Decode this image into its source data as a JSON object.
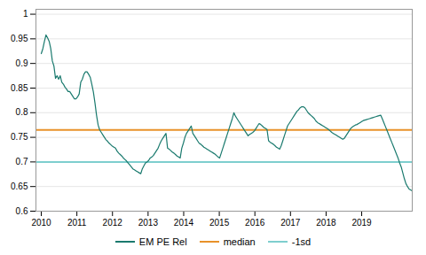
{
  "chart_data": {
    "type": "line",
    "x": [
      2010,
      2010.0443,
      2010.0887,
      2010.133,
      2010.1774,
      2010.2217,
      2010.266,
      2010.3104,
      2010.3547,
      2010.3991,
      2010.4434,
      2010.4877,
      2010.5321,
      2010.5764,
      2010.6208,
      2010.6651,
      2010.7094,
      2010.7538,
      2010.7981,
      2010.8425,
      2010.8868,
      2010.9311,
      2010.9755,
      2011.0198,
      2011.0642,
      2011.1085,
      2011.1529,
      2011.1972,
      2011.2415,
      2011.2859,
      2011.3302,
      2011.3746,
      2011.4189,
      2011.4632,
      2011.5076,
      2011.5519,
      2011.5963,
      2011.6406,
      2011.6849,
      2011.7293,
      2011.7736,
      2011.818,
      2011.8623,
      2011.9066,
      2011.951,
      2011.9953,
      2012.0397,
      2012.084,
      2012.1283,
      2012.1727,
      2012.217,
      2012.2614,
      2012.3057,
      2012.35,
      2012.3944,
      2012.4387,
      2012.4831,
      2012.5274,
      2012.5717,
      2012.6161,
      2012.6604,
      2012.7048,
      2012.7491,
      2012.7934,
      2012.8378,
      2012.8821,
      2012.9265,
      2012.9708,
      2013.0151,
      2013.0595,
      2013.1038,
      2013.1482,
      2013.1925,
      2013.2369,
      2013.2812,
      2013.3255,
      2013.3699,
      2013.4142,
      2013.4586,
      2013.5029,
      2013.5472,
      2013.5916,
      2013.6359,
      2013.6803,
      2013.7246,
      2013.7689,
      2013.8133,
      2013.8576,
      2013.902,
      2013.9463,
      2013.9906,
      2014.035,
      2014.0793,
      2014.1237,
      2014.168,
      2014.2123,
      2014.2567,
      2014.301,
      2014.3454,
      2014.3897,
      2014.434,
      2014.4784,
      2014.5227,
      2014.5671,
      2014.6114,
      2014.6557,
      2014.7001,
      2014.7444,
      2014.7888,
      2014.8331,
      2014.8774,
      2014.9218,
      2014.9661,
      2015.0105,
      2015.0548,
      2015.0991,
      2015.1435,
      2015.1878,
      2015.2322,
      2015.2765,
      2015.3209,
      2015.3652,
      2015.4095,
      2015.4539,
      2015.4982,
      2015.5426,
      2015.5869,
      2015.6312,
      2015.6756,
      2015.7199,
      2015.7643,
      2015.8086,
      2015.8529,
      2015.8973,
      2015.9416,
      2015.986,
      2016.0303,
      2016.0746,
      2016.119,
      2016.1633,
      2016.2077,
      2016.252,
      2016.2963,
      2016.3407,
      2016.385,
      2016.4294,
      2016.4737,
      2016.518,
      2016.5624,
      2016.6067,
      2016.6511,
      2016.6954,
      2016.7397,
      2016.7841,
      2016.8284,
      2016.8728,
      2016.9171,
      2016.9614,
      2017.0058,
      2017.0501,
      2017.0945,
      2017.1388,
      2017.1831,
      2017.2275,
      2017.2718,
      2017.3162,
      2017.3605,
      2017.4049,
      2017.4492,
      2017.4935,
      2017.5379,
      2017.5822,
      2017.6266,
      2017.6709,
      2017.7152,
      2017.7596,
      2017.8039,
      2017.8483,
      2017.8926,
      2017.9369,
      2017.9813,
      2018.0256,
      2018.07,
      2018.1143,
      2018.1586,
      2018.203,
      2018.2473,
      2018.2917,
      2018.336,
      2018.3803,
      2018.4247,
      2018.469,
      2018.5134,
      2018.5577,
      2018.602,
      2018.6464,
      2018.6907,
      2018.7351,
      2018.7794,
      2018.8237,
      2018.8681,
      2018.9124,
      2018.9568,
      2019.0011,
      2019.0454,
      2019.0898,
      2019.1341,
      2019.1785,
      2019.2228,
      2019.2671,
      2019.3115,
      2019.3558,
      2019.4002,
      2019.4445,
      2019.4889,
      2019.5332,
      2019.5775,
      2019.6219,
      2019.6662,
      2019.7106,
      2019.7549,
      2019.7992,
      2019.8436,
      2019.8879,
      2019.9323,
      2019.9766,
      2020.0209,
      2020.0653,
      2020.1096,
      2020.154,
      2020.1983,
      2020.2426,
      2020.287,
      2020.3313,
      2020.3757,
      2020.42
    ],
    "series": [
      {
        "name": "EM PE Rel",
        "color": "#1A7A6E",
        "values": [
          0.92,
          0.93,
          0.945,
          0.958,
          0.952,
          0.945,
          0.93,
          0.905,
          0.895,
          0.87,
          0.875,
          0.868,
          0.875,
          0.862,
          0.858,
          0.852,
          0.848,
          0.843,
          0.843,
          0.838,
          0.833,
          0.828,
          0.828,
          0.832,
          0.838,
          0.862,
          0.868,
          0.878,
          0.883,
          0.883,
          0.878,
          0.872,
          0.858,
          0.842,
          0.82,
          0.795,
          0.775,
          0.765,
          0.76,
          0.755,
          0.75,
          0.745,
          0.742,
          0.738,
          0.735,
          0.732,
          0.73,
          0.728,
          0.722,
          0.718,
          0.715,
          0.712,
          0.708,
          0.705,
          0.702,
          0.698,
          0.694,
          0.69,
          0.686,
          0.684,
          0.682,
          0.68,
          0.678,
          0.676,
          0.686,
          0.692,
          0.698,
          0.7,
          0.703,
          0.708,
          0.71,
          0.713,
          0.718,
          0.723,
          0.728,
          0.736,
          0.743,
          0.748,
          0.753,
          0.758,
          0.728,
          0.726,
          0.723,
          0.72,
          0.718,
          0.715,
          0.712,
          0.71,
          0.708,
          0.728,
          0.738,
          0.75,
          0.758,
          0.763,
          0.768,
          0.773,
          0.758,
          0.753,
          0.748,
          0.743,
          0.738,
          0.736,
          0.733,
          0.73,
          0.728,
          0.726,
          0.724,
          0.722,
          0.72,
          0.718,
          0.716,
          0.713,
          0.71,
          0.708,
          0.718,
          0.728,
          0.738,
          0.748,
          0.758,
          0.768,
          0.778,
          0.788,
          0.8,
          0.793,
          0.788,
          0.783,
          0.778,
          0.773,
          0.768,
          0.763,
          0.758,
          0.753,
          0.756,
          0.758,
          0.76,
          0.763,
          0.768,
          0.773,
          0.778,
          0.776,
          0.773,
          0.77,
          0.768,
          0.766,
          0.743,
          0.74,
          0.738,
          0.736,
          0.733,
          0.73,
          0.728,
          0.726,
          0.733,
          0.743,
          0.753,
          0.763,
          0.773,
          0.778,
          0.783,
          0.788,
          0.793,
          0.798,
          0.803,
          0.806,
          0.81,
          0.812,
          0.812,
          0.81,
          0.805,
          0.8,
          0.797,
          0.794,
          0.791,
          0.788,
          0.783,
          0.78,
          0.778,
          0.776,
          0.774,
          0.772,
          0.77,
          0.768,
          0.766,
          0.763,
          0.76,
          0.758,
          0.756,
          0.754,
          0.752,
          0.75,
          0.748,
          0.746,
          0.748,
          0.753,
          0.758,
          0.763,
          0.768,
          0.771,
          0.773,
          0.775,
          0.776,
          0.778,
          0.78,
          0.782,
          0.784,
          0.785,
          0.786,
          0.787,
          0.788,
          0.789,
          0.79,
          0.791,
          0.792,
          0.793,
          0.794,
          0.795,
          0.788,
          0.78,
          0.772,
          0.764,
          0.756,
          0.748,
          0.74,
          0.732,
          0.724,
          0.716,
          0.708,
          0.698,
          0.69,
          0.678,
          0.666,
          0.656,
          0.65,
          0.645,
          0.643,
          0.641
        ]
      },
      {
        "name": "median",
        "type": "hline",
        "color": "#E8922A",
        "value": 0.765
      },
      {
        "name": "-1sd",
        "type": "hline",
        "color": "#7ECECE",
        "value": 0.7
      }
    ],
    "xlim": [
      2009.85,
      2020.42
    ],
    "xticks": [
      2010,
      2011,
      2012,
      2013,
      2014,
      2015,
      2016,
      2017,
      2018,
      2019
    ],
    "ylim": [
      0.6,
      1.01
    ],
    "yticks": [
      0.6,
      0.65,
      0.7,
      0.75,
      0.8,
      0.85,
      0.9,
      0.95,
      1
    ],
    "grid": true,
    "legend": "bottom"
  }
}
